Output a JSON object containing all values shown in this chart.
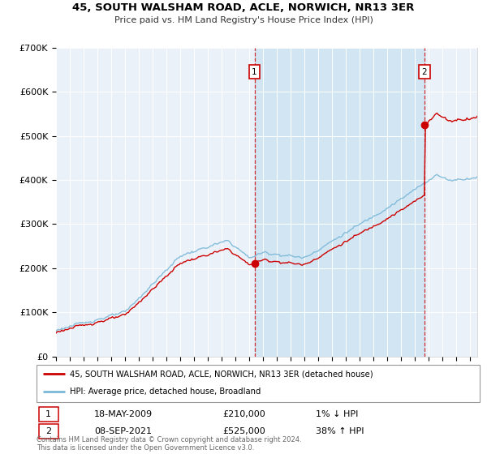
{
  "title": "45, SOUTH WALSHAM ROAD, ACLE, NORWICH, NR13 3ER",
  "subtitle": "Price paid vs. HM Land Registry's House Price Index (HPI)",
  "legend_line1": "45, SOUTH WALSHAM ROAD, ACLE, NORWICH, NR13 3ER (detached house)",
  "legend_line2": "HPI: Average price, detached house, Broadland",
  "annotation1_label": "1",
  "annotation1_date": "18-MAY-2009",
  "annotation1_price": "£210,000",
  "annotation1_hpi": "1% ↓ HPI",
  "annotation2_label": "2",
  "annotation2_date": "08-SEP-2021",
  "annotation2_price": "£525,000",
  "annotation2_hpi": "38% ↑ HPI",
  "footer": "Contains HM Land Registry data © Crown copyright and database right 2024.\nThis data is licensed under the Open Government Licence v3.0.",
  "hpi_color": "#7ab8d8",
  "price_color": "#cc0000",
  "marker_color": "#cc0000",
  "plot_bg": "#eaf1f8",
  "shade_color": "#d0e4f2",
  "grid_color": "#ffffff",
  "annotation_box_color": "#cc0000",
  "ylim": [
    0,
    700000
  ],
  "yticks": [
    0,
    100000,
    200000,
    300000,
    400000,
    500000,
    600000,
    700000
  ],
  "sale1_year": 2009.37,
  "sale2_year": 2021.68,
  "sale1_price": 210000,
  "sale2_price": 525000
}
